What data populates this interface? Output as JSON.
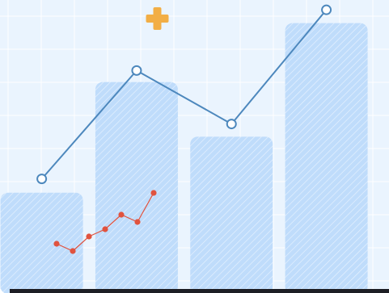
{
  "colors": {
    "background": "#eaf4fe",
    "grid": "#ffffff",
    "bar_fill": "#bfdcfb",
    "bar_hatch": "#e5f1fe",
    "line": "#4d88bd",
    "marker_fill": "#ffffff",
    "small_line": "#e0533f",
    "plus_icon": "#f2ae45",
    "baseline": "#1d1e24"
  },
  "plus_icon": "plus-icon",
  "chart_data": [
    {
      "type": "bar",
      "categories": [
        "",
        "",
        "",
        ""
      ],
      "x": [
        0,
        1,
        2,
        3
      ],
      "xlim": [
        -0.44,
        3.66
      ],
      "ylim": [
        0,
        100
      ],
      "grid": true,
      "series": [
        {
          "type": "bar",
          "values": [
            33.3,
            71.6,
            52.7,
            92.0
          ]
        },
        {
          "type": "line",
          "values": [
            38.1,
            75.6,
            57.1,
            96.6
          ]
        }
      ]
    },
    {
      "type": "line",
      "x": [
        0,
        1,
        2,
        3,
        4,
        5,
        6
      ],
      "xlim": [
        0,
        6
      ],
      "ylim": [
        0,
        10
      ],
      "series": [
        {
          "values": [
            2.0,
            1.0,
            3.0,
            4.0,
            6.0,
            5.0,
            9.0
          ]
        }
      ]
    }
  ]
}
